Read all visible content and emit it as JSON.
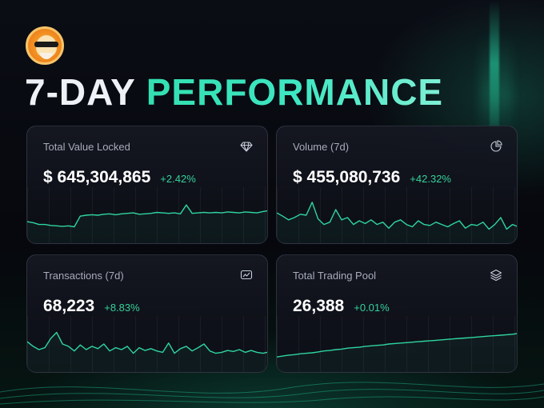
{
  "header": {
    "title_part1": "7-DAY",
    "title_part2": "PERFORMANCE",
    "logo_icon": "sun-mascot-logo-icon"
  },
  "colors": {
    "accent": "#33e0b0",
    "positive": "#34d39a",
    "spark_line": "#2fd4a0"
  },
  "cards": [
    {
      "label": "Total Value Locked",
      "icon": "diamond-icon",
      "value": "$ 645,304,865",
      "change": "+2.42%",
      "trend": [
        0.36,
        0.34,
        0.3,
        0.3,
        0.28,
        0.27,
        0.26,
        0.27,
        0.25,
        0.48,
        0.5,
        0.51,
        0.5,
        0.52,
        0.53,
        0.51,
        0.53,
        0.54,
        0.55,
        0.52,
        0.53,
        0.54,
        0.56,
        0.55,
        0.54,
        0.55,
        0.53,
        0.72,
        0.54,
        0.55,
        0.56,
        0.55,
        0.56,
        0.55,
        0.57,
        0.56,
        0.55,
        0.57,
        0.56,
        0.55,
        0.58,
        0.6
      ]
    },
    {
      "label": "Volume (7d)",
      "icon": "pie-chart-icon",
      "value": "$ 455,080,736",
      "change": "+42.32%",
      "trend": [
        0.55,
        0.48,
        0.4,
        0.45,
        0.52,
        0.5,
        0.78,
        0.42,
        0.3,
        0.35,
        0.62,
        0.4,
        0.45,
        0.3,
        0.38,
        0.32,
        0.4,
        0.3,
        0.35,
        0.22,
        0.35,
        0.4,
        0.3,
        0.25,
        0.38,
        0.3,
        0.28,
        0.35,
        0.3,
        0.25,
        0.32,
        0.38,
        0.22,
        0.3,
        0.28,
        0.35,
        0.2,
        0.3,
        0.45,
        0.2,
        0.3,
        0.25
      ]
    },
    {
      "label": "Transactions (7d)",
      "icon": "activity-chart-icon",
      "value": "68,223",
      "change": "+8.83%",
      "trend": [
        0.55,
        0.45,
        0.38,
        0.42,
        0.62,
        0.75,
        0.5,
        0.45,
        0.35,
        0.48,
        0.38,
        0.45,
        0.4,
        0.5,
        0.35,
        0.42,
        0.38,
        0.45,
        0.3,
        0.42,
        0.36,
        0.4,
        0.35,
        0.32,
        0.52,
        0.3,
        0.4,
        0.45,
        0.35,
        0.42,
        0.5,
        0.35,
        0.3,
        0.32,
        0.36,
        0.34,
        0.38,
        0.32,
        0.36,
        0.32,
        0.3,
        0.33
      ]
    },
    {
      "label": "Total Trading Pool",
      "icon": "layers-icon",
      "value": "26,388",
      "change": "+0.01%",
      "trend": [
        0.22,
        0.24,
        0.26,
        0.27,
        0.29,
        0.3,
        0.31,
        0.33,
        0.35,
        0.36,
        0.38,
        0.39,
        0.41,
        0.42,
        0.43,
        0.45,
        0.46,
        0.47,
        0.48,
        0.5,
        0.51,
        0.52,
        0.53,
        0.54,
        0.55,
        0.56,
        0.57,
        0.58,
        0.59,
        0.6,
        0.61,
        0.62,
        0.63,
        0.64,
        0.65,
        0.66,
        0.67,
        0.68,
        0.69,
        0.7,
        0.71,
        0.73
      ]
    }
  ]
}
